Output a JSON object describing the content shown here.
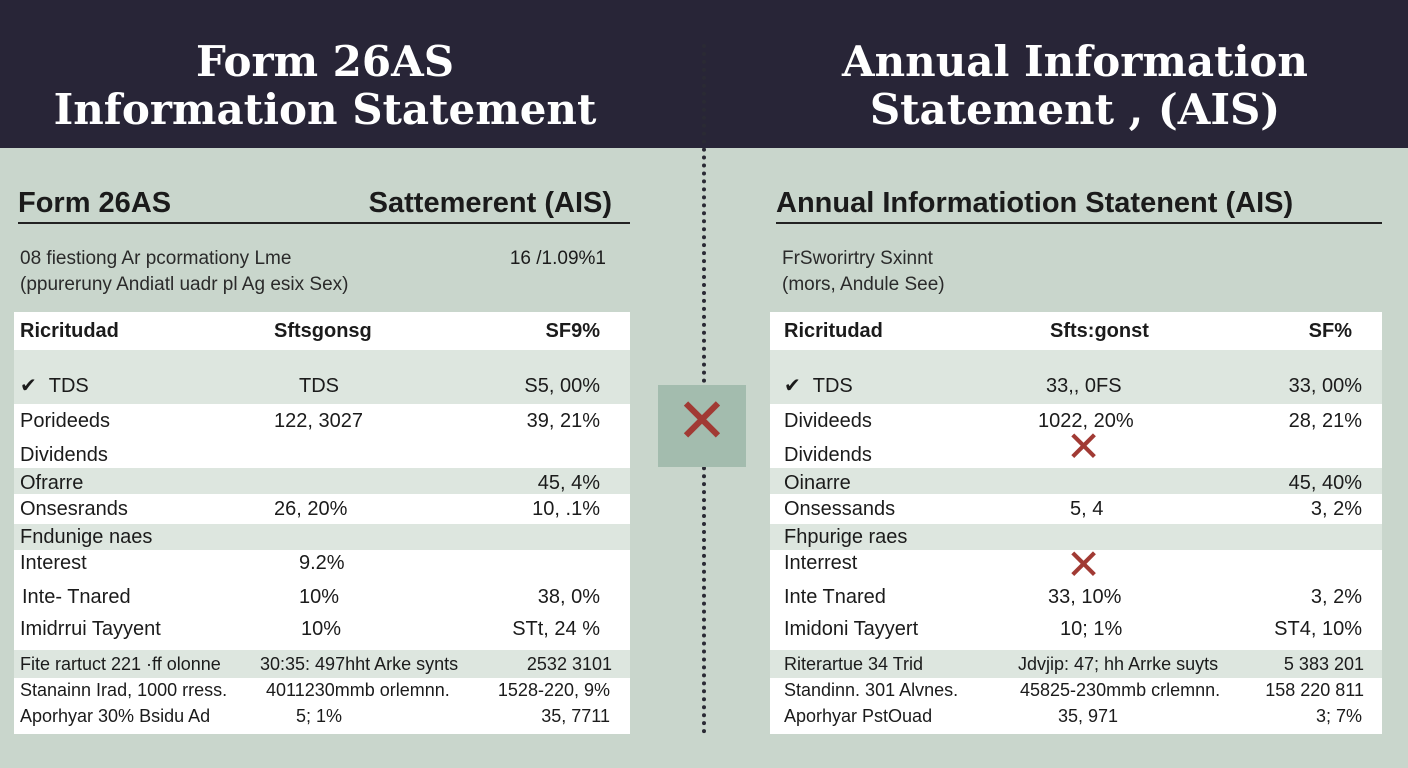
{
  "banner": {
    "left_title": [
      "Form 26AS",
      "Information Statement"
    ],
    "right_title": [
      "Annual Information",
      "Statement , (AIS)"
    ]
  },
  "left": {
    "heading_left": "Form 26AS",
    "heading_right": "Sattemerent (AIS)",
    "meta_line1": "08 fiestiong Ar pcormationy Lme",
    "meta_line2": "(ppureruny Andiatl uadr pl Ag esix Sex)",
    "meta_code": "16 /1.09%1",
    "header": [
      "Ricritudad",
      "Sftsgonsg",
      "SF9%"
    ],
    "rows": [
      {
        "label": "TDS",
        "mid": "TDS",
        "val": "S5, 00%"
      },
      {
        "label": "Porideeds",
        "mid": "122, 3027",
        "val": "39, 21%"
      },
      {
        "label": "Dividends",
        "mid": "",
        "val": ""
      },
      {
        "label": "Ofrarre",
        "mid": "",
        "val": "45, 4%"
      },
      {
        "label": "Onsesrands",
        "mid": "26, 20%",
        "val": "10, .1%"
      },
      {
        "label": "Fndunige naes",
        "mid": "",
        "val": ""
      },
      {
        "label": "Interest",
        "mid": "9.2%",
        "val": ""
      },
      {
        "label": "Inte- Tnared",
        "mid": "10%",
        "val": "38, 0%"
      },
      {
        "label": "Imidrrui Tayyent",
        "mid": "10%",
        "val": "STt, 24 %"
      },
      {
        "label": "Fite rartuct 221 ·ff olonne",
        "mid": "30:35: 497hht Arke synts",
        "val": "2532 3101"
      },
      {
        "label": "Stanainn Irad, 1000 rress.",
        "mid": "4011230mmb orlemnn.",
        "val": "1528-220, 9%"
      },
      {
        "label": "Aporhyar 30% Bsidu Ad",
        "mid": "5; 1%",
        "val": "35, 7711"
      }
    ]
  },
  "right": {
    "heading": "Annual Informatiotion Statenent (AIS)",
    "meta_line1": "FrSworirtry Sxinnt",
    "meta_line2": "(mors, Andule See)",
    "header": [
      "Ricritudad",
      "Sfts:gonst",
      "SF%"
    ],
    "rows": [
      {
        "label": "TDS",
        "mid": "33,, 0FS",
        "val": "33, 00%"
      },
      {
        "label": "Divideeds",
        "mid": "1022, 20%",
        "val": "28, 21%"
      },
      {
        "label": "Dividends",
        "mid": "",
        "val": ""
      },
      {
        "label": "Oinarre",
        "mid": "",
        "val": "45, 40%"
      },
      {
        "label": "Onsessands",
        "mid": "5, 4",
        "val": "3, 2%"
      },
      {
        "label": "Fhpurige raes",
        "mid": "",
        "val": ""
      },
      {
        "label": "Interrest",
        "mid": "",
        "val": ""
      },
      {
        "label": "Inte Tnared",
        "mid": "33, 10%",
        "val": "3, 2%"
      },
      {
        "label": "Imidoni Tayyert",
        "mid": "10; 1%",
        "val": "ST4, 10%"
      },
      {
        "label": "Riterartue 34 Trid",
        "mid": "Jdvjip: 47; hh Arrke suyts",
        "val": "5 383 201"
      },
      {
        "label": "Standinn. 301 Alvnes.",
        "mid": "45825-230mmb crlemnn.",
        "val": "158 220 811"
      },
      {
        "label": "Aporhyar PstOuad",
        "mid": "35, 971",
        "val": "3; 7%"
      }
    ]
  },
  "icons": {
    "check": "✔",
    "cross": "✕"
  }
}
